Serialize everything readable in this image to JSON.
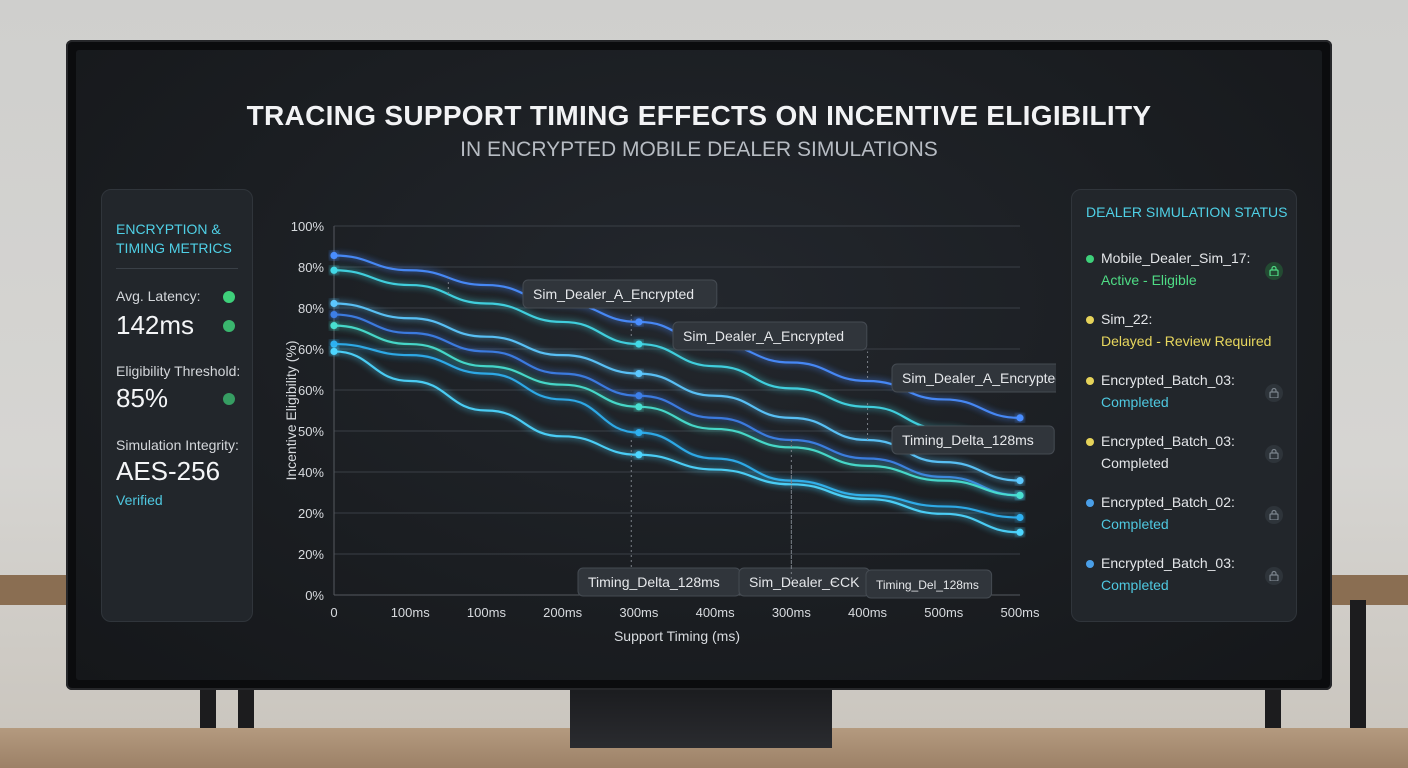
{
  "title": "TRACING SUPPORT TIMING EFFECTS ON INCENTIVE ELIGIBILITY",
  "subtitle": "IN ENCRYPTED MOBILE DEALER SIMULATIONS",
  "left_panel": {
    "heading_line1": "ENCRYPTION &",
    "heading_line2": "TIMING METRICS",
    "metrics": [
      {
        "label": "Avg. Latency:",
        "value": "142ms",
        "status_color": "#3ed07a"
      },
      {
        "label": "Eligibility Threshold:",
        "value": "85%",
        "status_color": "#3ed07a"
      },
      {
        "label": "Simulation Integrity:",
        "value": "AES-256",
        "note": "Verified"
      }
    ]
  },
  "right_panel": {
    "heading": "DEALER SIMULATION STATUS",
    "items": [
      {
        "name": "Mobile_Dealer_Sim_17:",
        "state": "Active - Eligible",
        "dot_color": "#3ed07a",
        "state_color": "#4fdc85",
        "lock": "lock-icon-green"
      },
      {
        "name": "Sim_22:",
        "state": "Delayed - Review Required",
        "dot_color": "#e6d35a",
        "state_color": "#e8d75e",
        "lock": ""
      },
      {
        "name": "Encrypted_Batch_03:",
        "state": "Completed",
        "dot_color": "#e6d35a",
        "state_color": "#4fc8e0",
        "lock": "lock-icon"
      },
      {
        "name": "Encrypted_Batch_03:",
        "state": "Completed",
        "dot_color": "#e6d35a",
        "state_color": "#e4e6e9",
        "lock": "lock-icon"
      },
      {
        "name": "Encrypted_Batch_02:",
        "state": "Completed",
        "dot_color": "#4a9fe8",
        "state_color": "#4fc8e0",
        "lock": "lock-icon"
      },
      {
        "name": "Encrypted_Batch_03:",
        "state": "Completed",
        "dot_color": "#4a9fe8",
        "state_color": "#4fc8e0",
        "lock": "lock-icon"
      }
    ]
  },
  "chart_data": {
    "type": "line",
    "xlabel": "Support Timing (ms)",
    "ylabel": "Incentive Eligibility (%)",
    "x_tick_labels": [
      "0",
      "100ms",
      "100ms",
      "200ms",
      "300ms",
      "400ms",
      "300ms",
      "400ms",
      "500ms",
      "500ms"
    ],
    "y_tick_labels": [
      "0%",
      "20%",
      "20%",
      "40%",
      "50%",
      "60%",
      "60%",
      "80%",
      "80%",
      "100%"
    ],
    "x": [
      0,
      1,
      2,
      3,
      4,
      5,
      6,
      7,
      8,
      9
    ],
    "series": [
      {
        "color": "#4a8dff",
        "values": [
          92,
          88,
          84,
          79,
          74,
          68,
          63,
          58,
          53,
          48
        ]
      },
      {
        "color": "#43d8e6",
        "values": [
          88,
          84,
          79,
          74,
          68,
          62,
          56,
          51,
          45,
          40
        ]
      },
      {
        "color": "#5cc8ff",
        "values": [
          79,
          75,
          70,
          65,
          60,
          54,
          48,
          42,
          36,
          31
        ]
      },
      {
        "color": "#3e7fe8",
        "values": [
          76,
          71,
          66,
          60,
          54,
          48,
          42,
          37,
          32,
          27
        ]
      },
      {
        "color": "#48e0d0",
        "values": [
          73,
          68,
          62,
          57,
          51,
          45,
          40,
          35,
          31,
          27
        ]
      },
      {
        "color": "#2fb0f0",
        "values": [
          68,
          65,
          60,
          53,
          44,
          37,
          31,
          27,
          24,
          21
        ]
      },
      {
        "color": "#4dd6ff",
        "values": [
          66,
          58,
          50,
          43,
          38,
          34,
          30,
          26,
          22,
          17
        ]
      }
    ],
    "annotations": [
      {
        "text": "Sim_Dealer_A_Encrypted"
      },
      {
        "text": "Sim_Dealer_A_Encrypted"
      },
      {
        "text": "Sim_Dealer_A_Encrypted"
      },
      {
        "text": "Timing_Delta_128ms"
      },
      {
        "text": "Timing_Delta_128ms"
      },
      {
        "text": "Sim_Dealer_ЄCK"
      },
      {
        "text": "Timing_Del_128ms"
      }
    ],
    "grid": true,
    "legend": "none"
  }
}
